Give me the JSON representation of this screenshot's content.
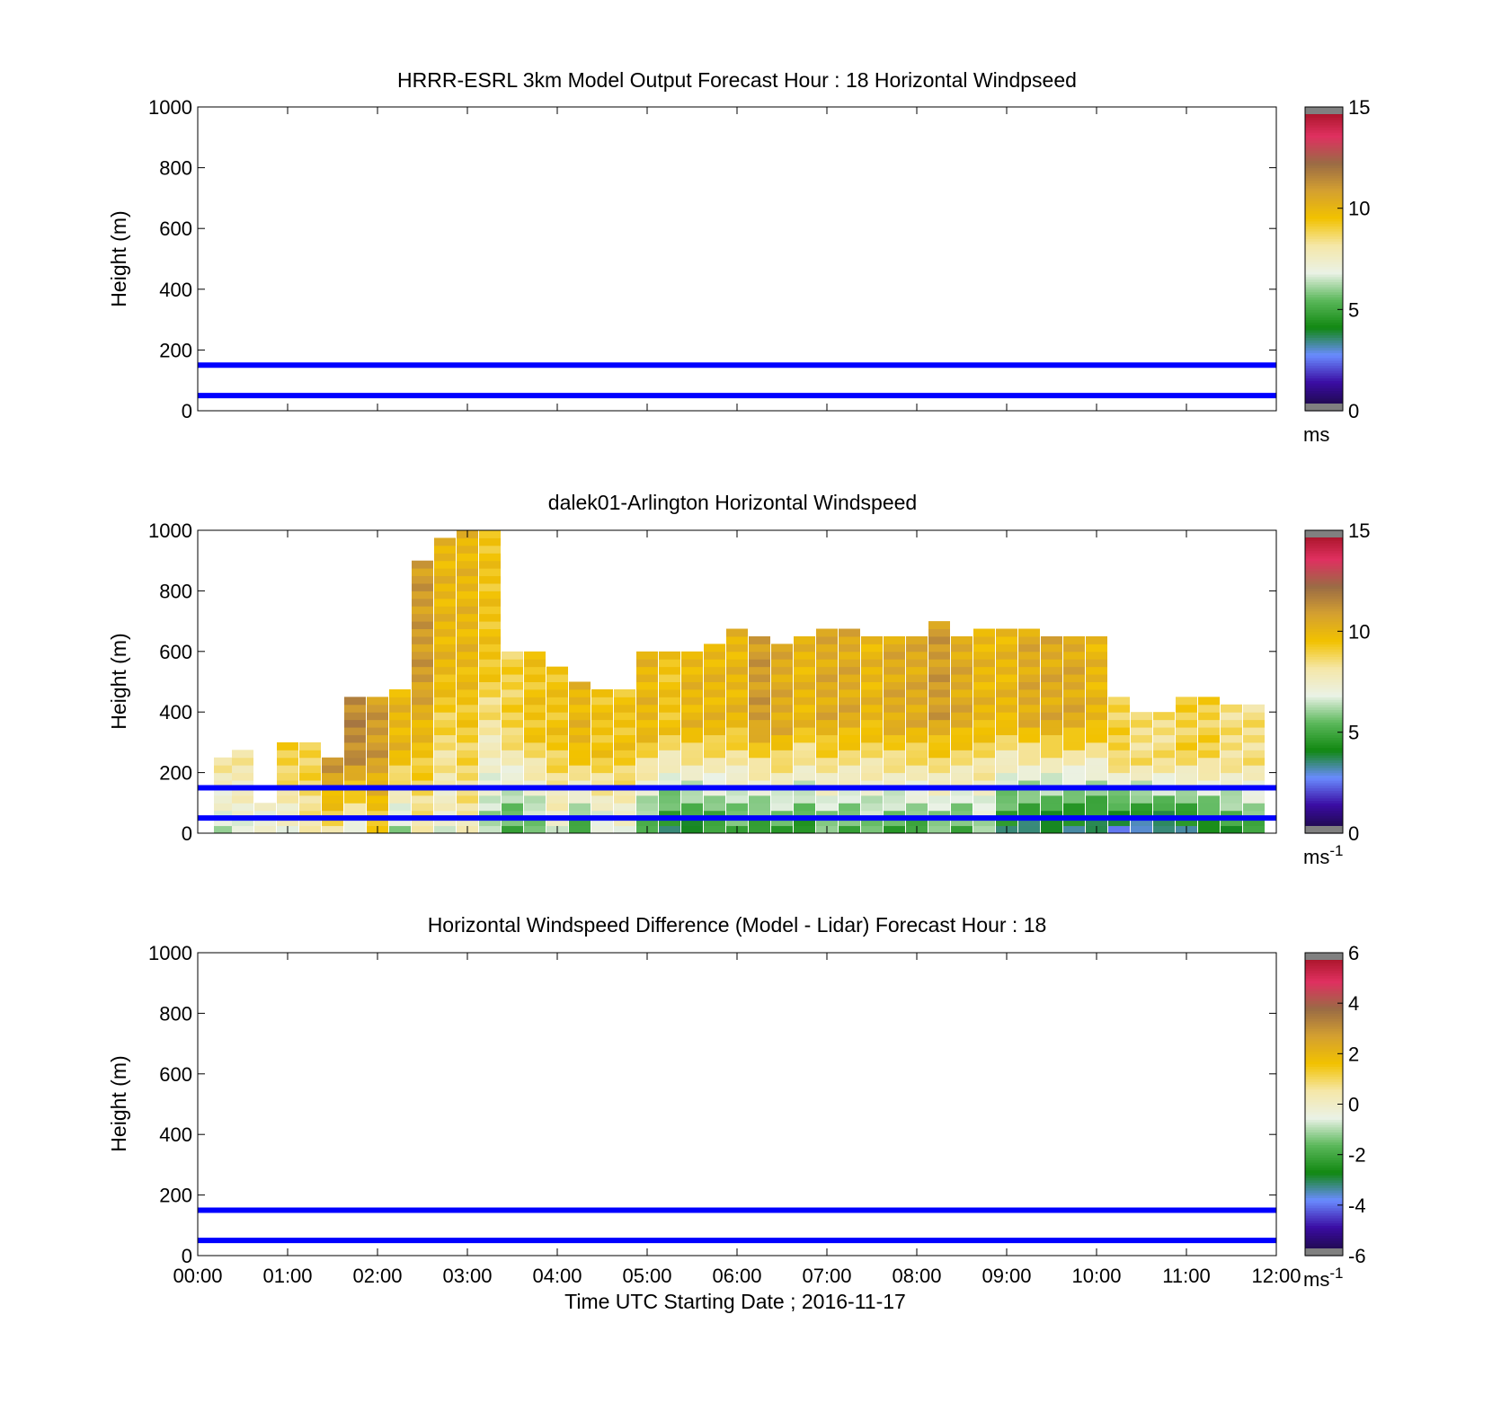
{
  "figure": {
    "xlabel": "Time UTC  Starting Date ; 2016-11-17",
    "x_tick_labels": [
      "00:00",
      "01:00",
      "02:00",
      "03:00",
      "04:00",
      "05:00",
      "06:00",
      "07:00",
      "08:00",
      "09:00",
      "10:00",
      "11:00",
      "12:00"
    ]
  },
  "colors": {
    "reference_line": "#0000ff",
    "colormap": [
      "#808080",
      "#1a0a3c",
      "#3a0ca3",
      "#6a8cff",
      "#118811",
      "#5bb85b",
      "#eaf2e6",
      "#f5e7a8",
      "#f2c200",
      "#d4a030",
      "#9a6b45",
      "#e03060",
      "#a01020",
      "#808080"
    ]
  },
  "chart_data": [
    {
      "type": "heatmap",
      "title": "HRRR-ESRL 3km Model Output   Forecast Hour : 18 Horizontal Windpseed",
      "ylabel": "Height (m)",
      "xlim": [
        "00:00",
        "12:00"
      ],
      "ylim": [
        0,
        1000
      ],
      "y_tick_labels": [
        "0",
        "200",
        "400",
        "600",
        "800",
        "1000"
      ],
      "reference_heights_m": [
        50,
        150
      ],
      "values": [],
      "colorbar": {
        "range": [
          0,
          15
        ],
        "tick_labels": [
          "0",
          "5",
          "10",
          "15"
        ],
        "unit": "ms",
        "unit_exp": ""
      }
    },
    {
      "type": "heatmap",
      "title": "dalek01-Arlington  Horizontal Windspeed",
      "ylabel": "Height (m)",
      "xlim": [
        "00:00",
        "12:00"
      ],
      "ylim": [
        0,
        1000
      ],
      "y_tick_labels": [
        "0",
        "200",
        "400",
        "600",
        "800",
        "1000"
      ],
      "reference_heights_m": [
        50,
        150
      ],
      "colorbar": {
        "range": [
          0,
          15
        ],
        "tick_labels": [
          "0",
          "5",
          "10",
          "15"
        ],
        "unit": "ms",
        "unit_exp": "-1"
      },
      "profile_times_h": [
        0.3,
        0.5,
        0.75,
        1.0,
        1.25,
        1.5,
        1.75,
        2.0,
        2.25,
        2.5,
        2.75,
        3.0,
        3.25,
        3.5,
        3.75,
        4.0,
        4.25,
        4.5,
        4.75,
        5.0,
        5.25,
        5.5,
        5.75,
        6.0,
        6.25,
        6.5,
        6.75,
        7.0,
        7.25,
        7.5,
        7.75,
        8.0,
        8.25,
        8.5,
        8.75,
        9.0,
        9.25,
        9.5,
        9.75,
        10.0,
        10.25,
        10.5,
        10.75,
        11.0,
        11.25,
        11.5,
        11.75
      ],
      "profile_top_m": [
        240,
        260,
        100,
        300,
        300,
        250,
        440,
        450,
        470,
        900,
        970,
        1000,
        990,
        600,
        580,
        540,
        500,
        460,
        470,
        580,
        600,
        600,
        620,
        660,
        640,
        610,
        650,
        660,
        660,
        650,
        650,
        650,
        690,
        650,
        660,
        670,
        660,
        640,
        650,
        640,
        430,
        400,
        390,
        440,
        440,
        420,
        420
      ],
      "lowlevel_windspeed_ms": [
        6.5,
        7,
        7,
        7,
        8,
        8.5,
        7,
        9,
        6,
        8,
        7,
        8,
        6,
        5,
        5.5,
        7,
        5,
        6.5,
        7,
        5,
        4,
        4,
        4.5,
        5,
        4.5,
        5,
        4.5,
        5.5,
        5,
        5.5,
        5,
        5,
        5.5,
        5,
        6,
        4,
        3.5,
        3.5,
        3.5,
        3.5,
        3,
        3,
        3,
        3.5,
        4,
        4.5,
        5
      ],
      "jet_windspeed_ms": [
        8,
        8,
        8,
        9,
        9,
        11,
        11.5,
        11,
        10,
        11,
        10,
        10,
        9.5,
        9,
        9.5,
        9.5,
        10,
        9.5,
        9.5,
        10,
        9.5,
        10,
        10,
        10,
        11,
        10.5,
        10,
        10.5,
        10.5,
        10,
        10.5,
        10.5,
        11,
        10.5,
        10,
        10,
        10.5,
        10.5,
        10.5,
        10,
        9,
        8.5,
        8.5,
        9,
        9,
        8.5,
        8.5
      ]
    },
    {
      "type": "heatmap",
      "title": "Horizontal Windspeed Difference (Model - Lidar) Forecast Hour : 18",
      "ylabel": "Height (m)",
      "xlim": [
        "00:00",
        "12:00"
      ],
      "ylim": [
        0,
        1000
      ],
      "y_tick_labels": [
        "0",
        "200",
        "400",
        "600",
        "800",
        "1000"
      ],
      "reference_heights_m": [
        50,
        150
      ],
      "values": [],
      "colorbar": {
        "range": [
          -6,
          6
        ],
        "tick_labels": [
          "-6",
          "-4",
          "-2",
          "0",
          "2",
          "4",
          "6"
        ],
        "unit": "ms",
        "unit_exp": "-1"
      }
    }
  ]
}
